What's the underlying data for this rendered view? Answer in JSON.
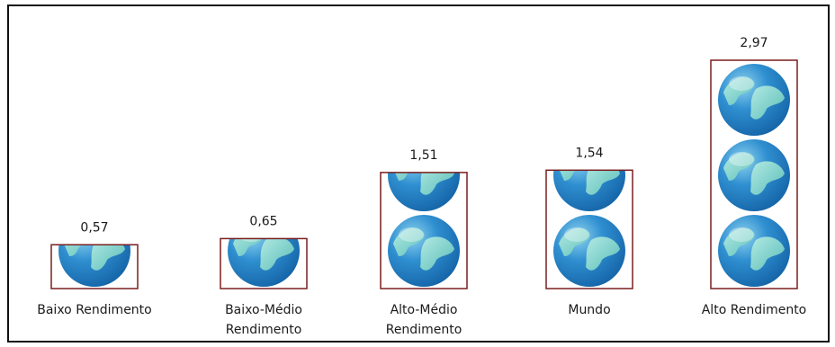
{
  "chart_data": {
    "type": "bar",
    "title": "",
    "xlabel": "",
    "ylabel": "",
    "categories": [
      "Baixo Rendimento",
      "Baixo-Médio Rendimento",
      "Alto-Médio Rendimento",
      "Mundo",
      "Alto    Rendimento"
    ],
    "category_lines": [
      [
        "Baixo Rendimento"
      ],
      [
        "Baixo-Médio",
        "Rendimento"
      ],
      [
        "Alto-Médio",
        "Rendimento"
      ],
      [
        "Mundo"
      ],
      [
        "Alto    Rendimento"
      ]
    ],
    "values": [
      0.57,
      0.65,
      1.51,
      1.54,
      2.97
    ],
    "value_labels": [
      "0,57",
      "0,65",
      "1,51",
      "1,54",
      "2,97"
    ],
    "ylim": [
      0,
      3
    ],
    "grid": false,
    "legend": "none",
    "mark": "globe-icon",
    "colors": {
      "bar_border": "#7a1f1f",
      "globe_dark": "#1565a8",
      "globe_mid": "#2f8fd0",
      "globe_light": "#8fd3ef",
      "land": "#5fc3b8",
      "land_light": "#b8ece4"
    }
  }
}
